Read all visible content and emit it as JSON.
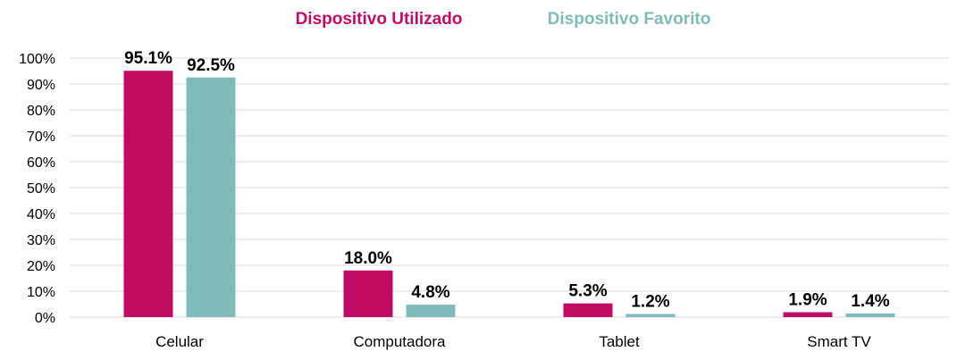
{
  "chart_data": {
    "type": "bar",
    "categories": [
      "Celular",
      "Computadora",
      "Tablet",
      "Smart TV"
    ],
    "series": [
      {
        "name": "Dispositivo Utilizado",
        "color": "#c00a63",
        "values": [
          95.1,
          18.0,
          5.3,
          1.9
        ],
        "labels": [
          "95.1%",
          "18.0%",
          "5.3%",
          "1.9%"
        ]
      },
      {
        "name": "Dispositivo Favorito",
        "color": "#7fbbba",
        "values": [
          92.5,
          4.8,
          1.2,
          1.4
        ],
        "labels": [
          "92.5%",
          "4.8%",
          "1.2%",
          "1.4%"
        ]
      }
    ],
    "ylim": [
      0,
      100
    ],
    "yticks": [
      0,
      10,
      20,
      30,
      40,
      50,
      60,
      70,
      80,
      90,
      100
    ],
    "ytick_labels": [
      "0%",
      "10%",
      "20%",
      "30%",
      "40%",
      "50%",
      "60%",
      "70%",
      "80%",
      "90%",
      "100%"
    ],
    "legend_position": "top-center",
    "grid": true,
    "grid_color": "#d9d9d9"
  }
}
